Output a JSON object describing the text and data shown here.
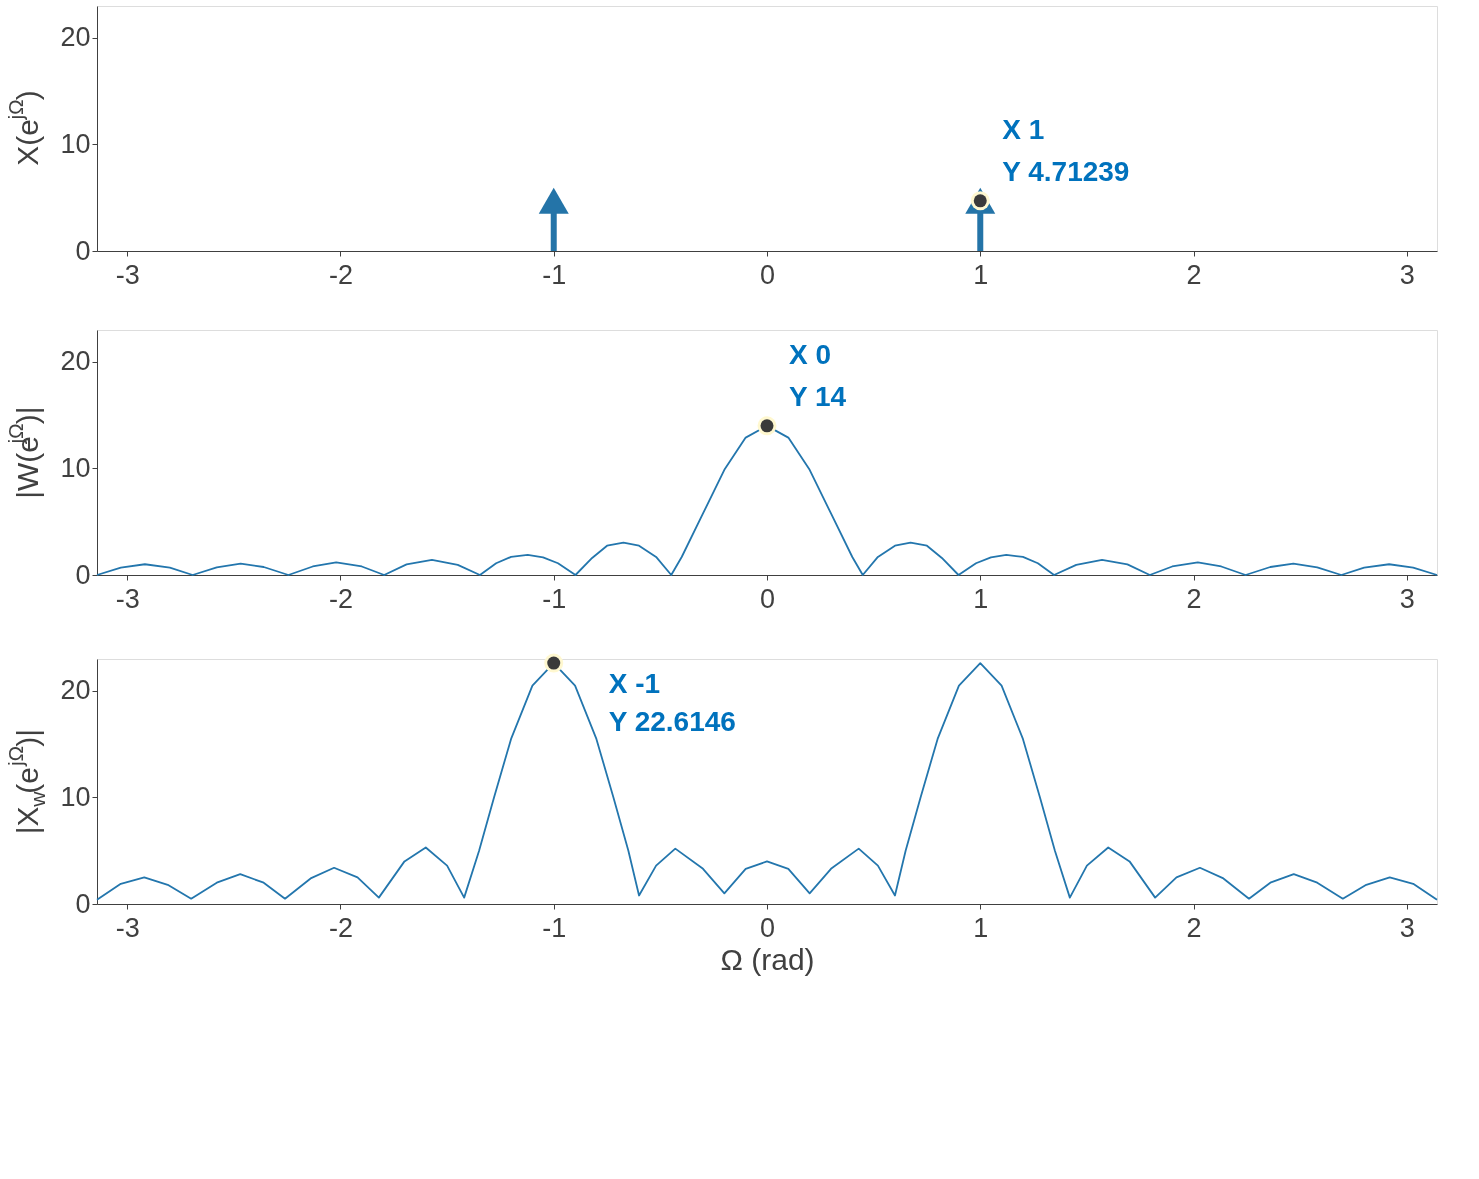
{
  "chart_data": [
    {
      "type": "lollipop",
      "x": [
        -1,
        1
      ],
      "values": [
        4.71239,
        4.71239
      ],
      "color": "#2474a8",
      "marker": "triangle",
      "ylabel": "X(e$^{jΩ}$)",
      "xlim": [
        -3.1416,
        3.1416
      ],
      "xticks": [
        -3,
        -2,
        -1,
        0,
        1,
        2,
        3
      ],
      "ylim": [
        0,
        23
      ],
      "yticks": [
        0,
        10,
        20
      ],
      "grid": false,
      "annotations": [
        {
          "text": "X 1",
          "x": 1,
          "y": 4.71239
        },
        {
          "text": "Y 4.71239",
          "x": 1,
          "y": 4.71239
        }
      ]
    },
    {
      "type": "line",
      "ylabel": "|W(e$^{jΩ}$)|",
      "xlim": [
        -3.1416,
        3.1416
      ],
      "xticks": [
        -3,
        -2,
        -1,
        0,
        1,
        2,
        3
      ],
      "ylim": [
        0,
        23
      ],
      "yticks": [
        0,
        10,
        20
      ],
      "grid": false,
      "series": [
        {
          "color": "#2376ad",
          "x": [
            -3.1416,
            -3.03,
            -2.917,
            -2.8,
            -2.693,
            -2.58,
            -2.468,
            -2.36,
            -2.244,
            -2.13,
            -2.02,
            -1.9,
            -1.795,
            -1.69,
            -1.571,
            -1.45,
            -1.346,
            -1.27,
            -1.2,
            -1.122,
            -1.05,
            -0.98,
            -0.898,
            -0.82,
            -0.75,
            -0.673,
            -0.6,
            -0.52,
            -0.449,
            -0.4,
            -0.3,
            -0.2,
            -0.1,
            0,
            0.1,
            0.2,
            0.3,
            0.4,
            0.449,
            0.52,
            0.6,
            0.673,
            0.75,
            0.82,
            0.898,
            0.98,
            1.05,
            1.122,
            1.2,
            1.27,
            1.346,
            1.45,
            1.571,
            1.69,
            1.795,
            1.9,
            2.02,
            2.13,
            2.244,
            2.36,
            2.468,
            2.58,
            2.693,
            2.8,
            2.917,
            3.03,
            3.1416
          ],
          "values": [
            0,
            0.7,
            1.01,
            0.7,
            0,
            0.72,
            1.06,
            0.75,
            0,
            0.8,
            1.18,
            0.8,
            0,
            1.0,
            1.41,
            0.95,
            0,
            1.1,
            1.7,
            1.88,
            1.65,
            1.1,
            0,
            1.6,
            2.75,
            3.03,
            2.75,
            1.7,
            0,
            1.69,
            5.78,
            9.87,
            12.9,
            14,
            12.9,
            9.87,
            5.78,
            1.69,
            0,
            1.7,
            2.75,
            3.03,
            2.75,
            1.6,
            0,
            1.1,
            1.65,
            1.88,
            1.7,
            1.1,
            0,
            0.95,
            1.41,
            1.0,
            0,
            0.8,
            1.18,
            0.8,
            0,
            0.75,
            1.06,
            0.72,
            0,
            0.7,
            1.01,
            0.7,
            0
          ]
        }
      ],
      "annotations": [
        {
          "text": "X 0",
          "x": 0,
          "y": 14
        },
        {
          "text": "Y 14",
          "x": 0,
          "y": 14
        }
      ]
    },
    {
      "type": "line",
      "ylabel": "|X$_{w}$(e$^{jΩ}$)|",
      "xlabel": "Ω (rad)",
      "xlim": [
        -3.1416,
        3.1416
      ],
      "xticks": [
        -3,
        -2,
        -1,
        0,
        1,
        2,
        3
      ],
      "ylim": [
        0,
        23
      ],
      "yticks": [
        0,
        10,
        20
      ],
      "grid": false,
      "series": [
        {
          "color": "#2376ad",
          "x": [
            -3.1416,
            -3.03,
            -2.92,
            -2.81,
            -2.7,
            -2.58,
            -2.47,
            -2.36,
            -2.26,
            -2.14,
            -2.03,
            -1.92,
            -1.82,
            -1.7,
            -1.6,
            -1.5,
            -1.42,
            -1.35,
            -1.28,
            -1.2,
            -1.1,
            -1.0,
            -0.9,
            -0.8,
            -0.72,
            -0.65,
            -0.6,
            -0.52,
            -0.43,
            -0.3,
            -0.2,
            -0.1,
            0,
            0.1,
            0.2,
            0.3,
            0.43,
            0.52,
            0.6,
            0.65,
            0.72,
            0.8,
            0.9,
            1.0,
            1.1,
            1.2,
            1.28,
            1.35,
            1.42,
            1.5,
            1.6,
            1.7,
            1.82,
            1.92,
            2.03,
            2.14,
            2.26,
            2.36,
            2.47,
            2.58,
            2.7,
            2.81,
            2.92,
            3.03,
            3.1416
          ],
          "values": [
            0.4,
            1.9,
            2.5,
            1.8,
            0.5,
            2.0,
            2.8,
            2.0,
            0.5,
            2.4,
            3.4,
            2.5,
            0.6,
            4.0,
            5.3,
            3.6,
            0.6,
            5.0,
            10.0,
            15.5,
            20.5,
            22.6146,
            20.5,
            15.5,
            10.0,
            5.0,
            0.8,
            3.6,
            5.2,
            3.3,
            1.0,
            3.3,
            4.0,
            3.3,
            1.0,
            3.3,
            5.2,
            3.6,
            0.8,
            5.0,
            10.0,
            15.5,
            20.5,
            22.6146,
            20.5,
            15.5,
            10.0,
            5.0,
            0.6,
            3.6,
            5.3,
            4.0,
            0.6,
            2.5,
            3.4,
            2.4,
            0.5,
            2.0,
            2.8,
            2.0,
            0.5,
            1.8,
            2.5,
            1.9,
            0.4
          ]
        }
      ],
      "annotations": [
        {
          "text": "X -1",
          "x": -1,
          "y": 22.6146
        },
        {
          "text": "Y 22.6146",
          "x": -1,
          "y": 22.6146
        }
      ]
    }
  ]
}
